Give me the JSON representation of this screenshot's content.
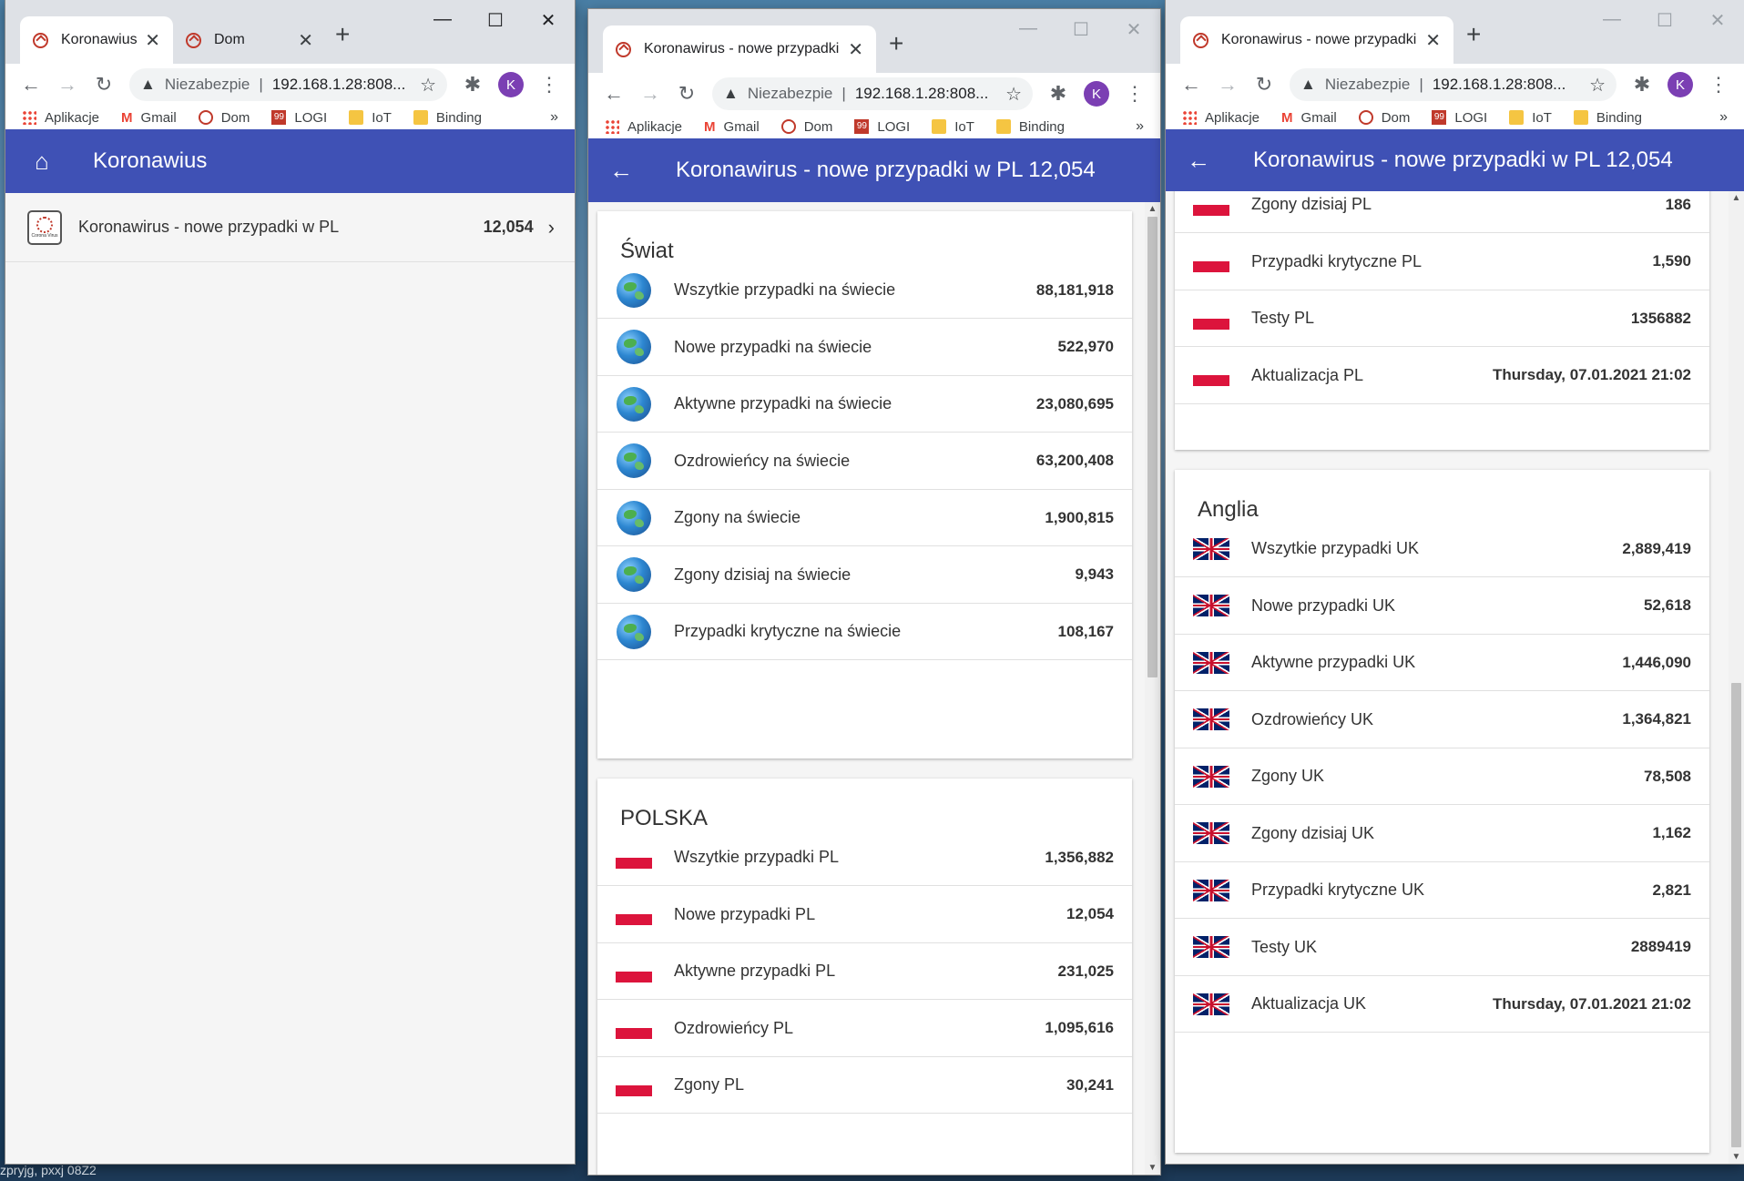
{
  "desktop": {
    "bottom_text": "zpryjg, pxxj 08Z2"
  },
  "bookmarks": [
    "Aplikacje",
    "Gmail",
    "Dom",
    "LOGI",
    "IoT",
    "Binding"
  ],
  "bookmarks_more": "»",
  "omnibox": {
    "warning": "Niezabezpie",
    "url": "192.168.1.28:808..."
  },
  "profile_initial": "K",
  "window1": {
    "tabs": [
      {
        "title": "Koronawius",
        "close": "✕"
      },
      {
        "title": "Dom",
        "close": "✕"
      }
    ],
    "appbar_title": "Koronawius",
    "list_item": {
      "label": "Koronawirus - nowe przypadki w PL",
      "value": "12,054",
      "logo_text": "Corona Virus"
    }
  },
  "window2": {
    "tab": {
      "title": "Koronawirus - nowe przypadki w",
      "close": "✕"
    },
    "appbar_title": "Koronawirus - nowe przypadki w PL 12,054",
    "world": {
      "title": "Świat",
      "rows": [
        {
          "label": "Wszytkie przypadki na świecie",
          "value": "88,181,918"
        },
        {
          "label": "Nowe przypadki na świecie",
          "value": "522,970"
        },
        {
          "label": "Aktywne przypadki na świecie",
          "value": "23,080,695"
        },
        {
          "label": "Ozdrowieńcy na świecie",
          "value": "63,200,408"
        },
        {
          "label": "Zgony na świecie",
          "value": "1,900,815"
        },
        {
          "label": "Zgony dzisiaj na świecie",
          "value": "9,943"
        },
        {
          "label": "Przypadki krytyczne na świecie",
          "value": "108,167"
        }
      ]
    },
    "poland": {
      "title": "POLSKA",
      "rows": [
        {
          "label": "Wszytkie przypadki PL",
          "value": "1,356,882"
        },
        {
          "label": "Nowe przypadki PL",
          "value": "12,054"
        },
        {
          "label": "Aktywne przypadki PL",
          "value": "231,025"
        },
        {
          "label": "Ozdrowieńcy PL",
          "value": "1,095,616"
        },
        {
          "label": "Zgony PL",
          "value": "30,241"
        }
      ]
    }
  },
  "window3": {
    "tab": {
      "title": "Koronawirus - nowe przypadki w",
      "close": "✕"
    },
    "appbar_title": "Koronawirus - nowe przypadki w PL 12,054",
    "poland_rows": [
      {
        "label": "Zgony dzisiaj PL",
        "value": "186"
      },
      {
        "label": "Przypadki krytyczne PL",
        "value": "1,590"
      },
      {
        "label": "Testy PL",
        "value": "1356882"
      },
      {
        "label": "Aktualizacja PL",
        "value": "Thursday, 07.01.2021 21:02"
      }
    ],
    "england": {
      "title": "Anglia",
      "rows": [
        {
          "label": "Wszytkie przypadki UK",
          "value": "2,889,419"
        },
        {
          "label": "Nowe przypadki UK",
          "value": "52,618"
        },
        {
          "label": "Aktywne przypadki UK",
          "value": "1,446,090"
        },
        {
          "label": "Ozdrowieńcy UK",
          "value": "1,364,821"
        },
        {
          "label": "Zgony UK",
          "value": "78,508"
        },
        {
          "label": "Zgony dzisiaj UK",
          "value": "1,162"
        },
        {
          "label": "Przypadki krytyczne UK",
          "value": "2,821"
        },
        {
          "label": "Testy UK",
          "value": "2889419"
        },
        {
          "label": "Aktualizacja UK",
          "value": "Thursday, 07.01.2021 21:02"
        }
      ]
    }
  },
  "colors": {
    "appbar": "#3f51b5",
    "pl_red": "#dc143c",
    "uk_blue": "#012169"
  },
  "icons": {
    "home": "home-icon",
    "back": "arrow-back-icon",
    "chevron": "chevron-right-icon",
    "globe": "globe-icon",
    "pl_flag": "poland-flag-icon",
    "uk_flag": "uk-flag-icon"
  }
}
